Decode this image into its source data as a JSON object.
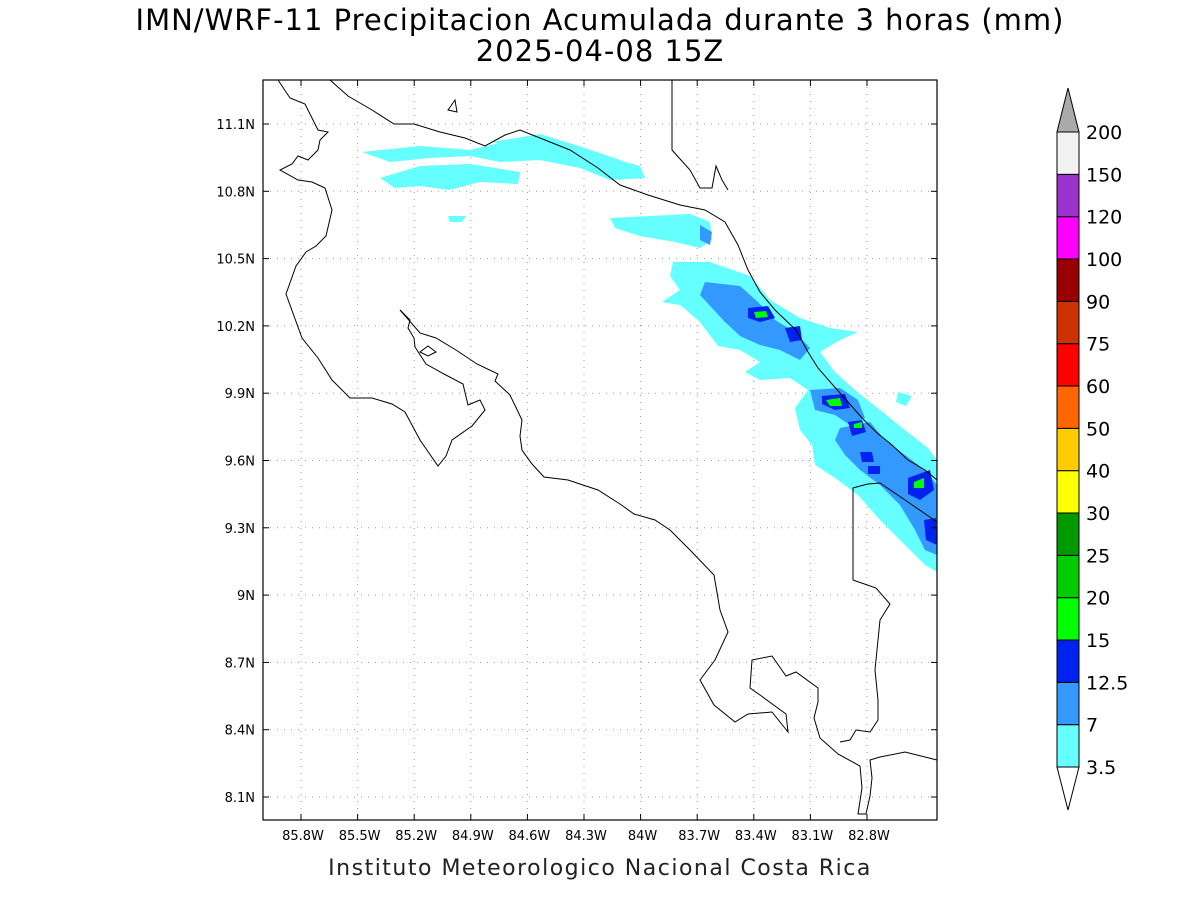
{
  "title": "IMN/WRF-11 Precipitacion Acumulada durante 3 horas (mm)",
  "subtitle": "2025-04-08 15Z",
  "credit": "Instituto Meteorologico Nacional Costa Rica",
  "x_ticks": [
    "85.8W",
    "85.5W",
    "85.2W",
    "84.9W",
    "84.6W",
    "84.3W",
    "84W",
    "83.7W",
    "83.4W",
    "83.1W",
    "82.8W"
  ],
  "y_ticks": [
    "11.1N",
    "10.8N",
    "10.5N",
    "10.2N",
    "9.9N",
    "9.6N",
    "9.3N",
    "9N",
    "8.7N",
    "8.4N",
    "8.1N"
  ],
  "colorbar": {
    "labels": [
      "3.5",
      "7",
      "12.5",
      "15",
      "20",
      "25",
      "30",
      "40",
      "50",
      "60",
      "75",
      "90",
      "100",
      "120",
      "150",
      "200"
    ],
    "colors": [
      "#66ffff",
      "#3399ff",
      "#0022ee",
      "#00ff00",
      "#00cc00",
      "#009900",
      "#ffff00",
      "#ffcc00",
      "#ff6600",
      "#ff0000",
      "#cc3300",
      "#990000",
      "#ff00ff",
      "#9933cc",
      "#f2f2f2",
      "#aaaaaa"
    ]
  }
}
